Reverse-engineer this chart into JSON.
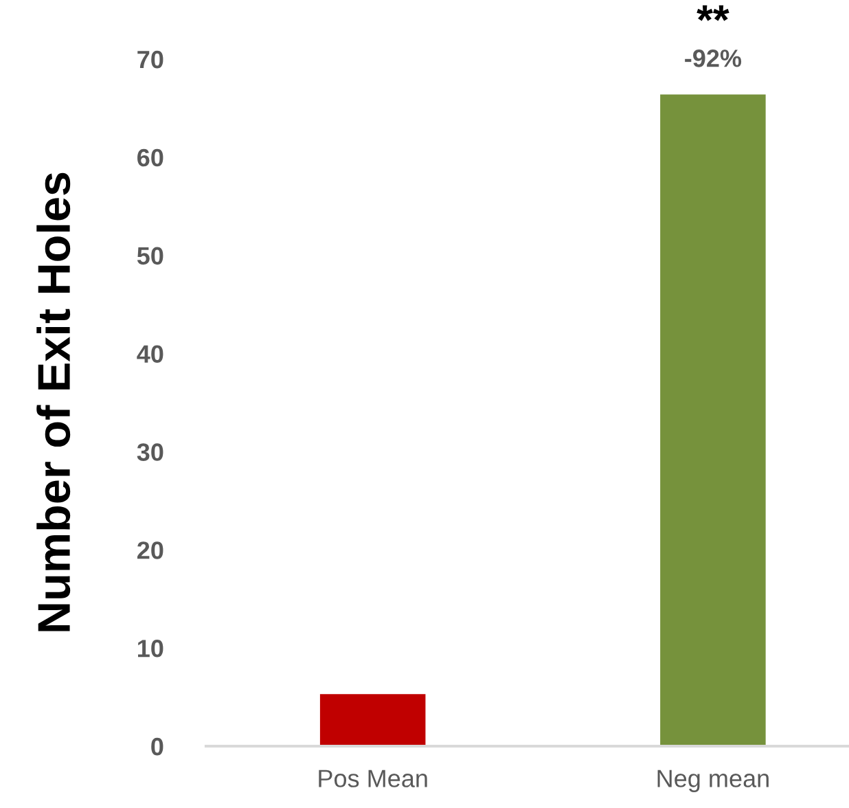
{
  "chart_data": {
    "type": "bar",
    "ylabel": "Number of Exit Holes",
    "categories": [
      "Pos Mean",
      "Neg mean"
    ],
    "values": [
      5.3,
      66.4
    ],
    "colors": [
      "#c00000",
      "#76923c"
    ],
    "ylim": [
      0,
      70
    ],
    "yticks": [
      0,
      10,
      20,
      30,
      40,
      50,
      60,
      70
    ],
    "grid": false,
    "legend": false,
    "annotations": [
      "**",
      "-92%"
    ]
  }
}
